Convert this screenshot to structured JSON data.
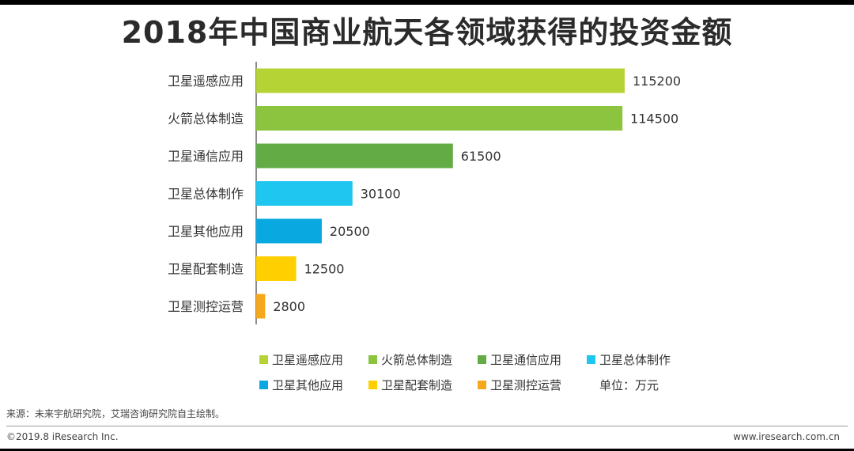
{
  "chart_data": {
    "type": "bar",
    "orientation": "horizontal",
    "title": "2018年中国商业航天各领域获得的投资金额",
    "categories": [
      "卫星遥感应用",
      "火箭总体制造",
      "卫星通信应用",
      "卫星总体制作",
      "卫星其他应用",
      "卫星配套制造",
      "卫星测控运营"
    ],
    "values": [
      115200,
      114500,
      61500,
      30100,
      20500,
      12500,
      2800
    ],
    "colors": [
      "#B5D334",
      "#8CC43F",
      "#63AC45",
      "#1FC6EF",
      "#0AA8E0",
      "#FFCF00",
      "#F5A81C"
    ],
    "xlim": [
      0,
      115200
    ],
    "xlabel": "",
    "ylabel": "",
    "unit": "单位：万元",
    "legend_position": "bottom"
  },
  "legend": {
    "items": [
      {
        "label": "卫星遥感应用",
        "color": "#B5D334"
      },
      {
        "label": "火箭总体制造",
        "color": "#8CC43F"
      },
      {
        "label": "卫星通信应用",
        "color": "#63AC45"
      },
      {
        "label": "卫星总体制作",
        "color": "#1FC6EF"
      },
      {
        "label": "卫星其他应用",
        "color": "#0AA8E0"
      },
      {
        "label": "卫星配套制造",
        "color": "#FFCF00"
      },
      {
        "label": "卫星测控运营",
        "color": "#F5A81C"
      }
    ],
    "unit": "单位：万元"
  },
  "footer": {
    "source": "来源：未来宇航研究院，艾瑞咨询研究院自主绘制。",
    "copyright": "©2019.8 iResearch Inc.",
    "website": "www.iresearch.com.cn"
  }
}
